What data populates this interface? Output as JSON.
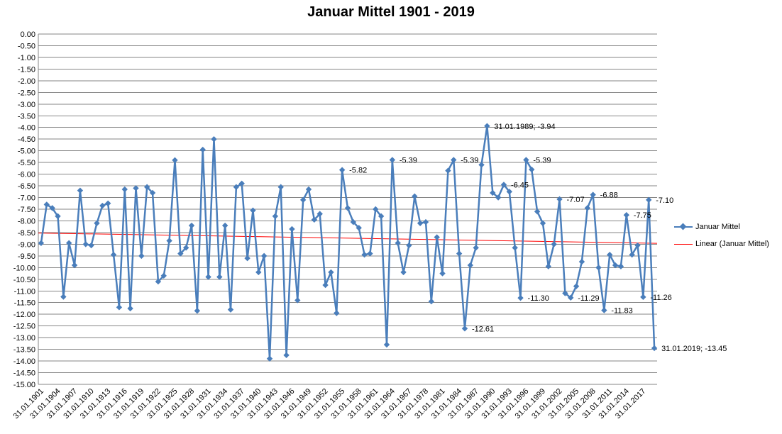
{
  "chart_data": {
    "type": "line",
    "title": "Januar Mittel 1901 - 2019",
    "ylim": [
      -15,
      0
    ],
    "ytick_step": 0.5,
    "grid": true,
    "legend_position": "right",
    "x_tick_labels": [
      "31.01.1901",
      "31.01.1904",
      "31.01.1907",
      "31.01.1910",
      "31.01.1913",
      "31.01.1916",
      "31.01.1919",
      "31.01.1922",
      "31.01.1925",
      "31.01.1928",
      "31.01.1931",
      "31.01.1934",
      "31.01.1937",
      "31.01.1940",
      "31.01.1943",
      "31.01.1946",
      "31.01.1949",
      "31.01.1952",
      "31.01.1955",
      "31.01.1958",
      "31.01.1961",
      "31.01.1964",
      "31.01.1967",
      "31.01.1978",
      "31.01.1981",
      "31.01.1984",
      "31.01.1987",
      "31.01.1990",
      "31.01.1993",
      "31.01.1996",
      "31.01.1999",
      "31.01.2002",
      "31.01.2005",
      "31.01.2008",
      "31.01.2011",
      "31.01.2014",
      "31.01.2017"
    ],
    "series": [
      {
        "name": "Januar Mittel",
        "color": "#4a7ebb",
        "marker": "diamond",
        "values": [
          -8.95,
          -7.3,
          -7.45,
          -7.8,
          -11.25,
          -8.95,
          -9.9,
          -6.7,
          -9.0,
          -9.05,
          -8.1,
          -7.35,
          -7.25,
          -9.45,
          -11.7,
          -6.65,
          -11.75,
          -6.6,
          -9.5,
          -6.55,
          -6.8,
          -10.6,
          -10.35,
          -8.85,
          -5.4,
          -9.4,
          -9.15,
          -8.2,
          -11.85,
          -4.95,
          -10.4,
          -4.5,
          -10.4,
          -8.2,
          -11.8,
          -6.55,
          -6.4,
          -9.6,
          -7.55,
          -10.2,
          -9.5,
          -13.9,
          -7.8,
          -6.55,
          -13.75,
          -8.35,
          -11.4,
          -7.1,
          -6.65,
          -7.95,
          -7.7,
          -10.75,
          -10.2,
          -11.95,
          -5.82,
          -7.45,
          -8.05,
          -8.3,
          -9.45,
          -9.4,
          -7.5,
          -7.8,
          -13.3,
          -5.39,
          -8.95,
          -10.2,
          -9.05,
          -6.95,
          -8.1,
          -8.05,
          -11.45,
          -8.7,
          -10.25,
          -5.85,
          -5.39,
          -9.4,
          -12.61,
          -9.9,
          -9.15,
          -5.6,
          -3.94,
          -6.8,
          -7.0,
          -6.45,
          -6.75,
          -9.15,
          -11.3,
          -5.39,
          -5.8,
          -7.6,
          -8.1,
          -9.95,
          -9.0,
          -7.07,
          -11.1,
          -11.29,
          -10.8,
          -9.75,
          -7.45,
          -6.88,
          -10.0,
          -11.83,
          -9.45,
          -9.9,
          -9.95,
          -7.75,
          -9.45,
          -9.05,
          -11.26,
          -7.1,
          -13.45
        ]
      },
      {
        "name": "Linear (Januar Mittel)",
        "color": "#ff0000",
        "trend_start": -8.52,
        "trend_end": -8.96
      }
    ],
    "data_labels": [
      {
        "index": 54,
        "text": "-5.82"
      },
      {
        "index": 63,
        "text": "-5.39"
      },
      {
        "index": 74,
        "text": "-5.39"
      },
      {
        "index": 76,
        "text": "-12.61"
      },
      {
        "index": 80,
        "text": "31.01.1989; -3.94"
      },
      {
        "index": 83,
        "text": "-6.45"
      },
      {
        "index": 86,
        "text": "-11.30"
      },
      {
        "index": 87,
        "text": "-5.39"
      },
      {
        "index": 93,
        "text": "-7.07"
      },
      {
        "index": 95,
        "text": "-11.29"
      },
      {
        "index": 99,
        "text": "-6.88"
      },
      {
        "index": 101,
        "text": "-11.83"
      },
      {
        "index": 105,
        "text": "-7.75"
      },
      {
        "index": 108,
        "text": "-11.26"
      },
      {
        "index": 109,
        "text": "-7.10"
      },
      {
        "index": 110,
        "text": "31.01.2019; -13.45"
      }
    ]
  }
}
